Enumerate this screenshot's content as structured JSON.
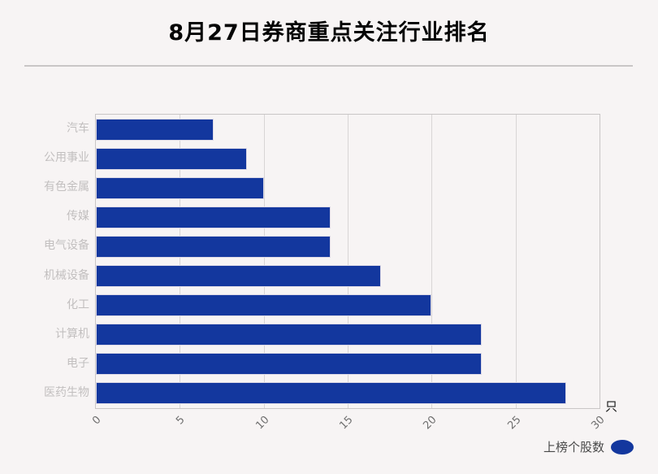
{
  "title": "8月27日券商重点关注行业排名",
  "unit_label": "只",
  "legend": {
    "label": "上榜个股数"
  },
  "colors": {
    "background": "#f7f4f4",
    "bar": "#13379e",
    "grid": "#d8d5d5",
    "plot_border": "#c9c6c6",
    "category_label": "#c2bfbf",
    "tick_label": "#6f6f6f",
    "title_text": "#050505",
    "legend_text": "#4a4a4a"
  },
  "chart_data": {
    "type": "bar",
    "orientation": "horizontal",
    "title": "8月27日券商重点关注行业排名",
    "categories": [
      "汽车",
      "公用事业",
      "有色金属",
      "传媒",
      "电气设备",
      "机械设备",
      "化工",
      "计算机",
      "电子",
      "医药生物"
    ],
    "values": [
      7,
      9,
      10,
      14,
      14,
      17,
      20,
      23,
      23,
      28
    ],
    "series_name": "上榜个股数",
    "unit": "只",
    "xlim": [
      0,
      30
    ],
    "x_ticks": [
      0,
      5,
      10,
      15,
      20,
      25,
      30
    ],
    "x_tick_rotation": 45,
    "grid": "vertical-only",
    "legend_position": "bottom-right",
    "bar_color": "#13379e"
  }
}
